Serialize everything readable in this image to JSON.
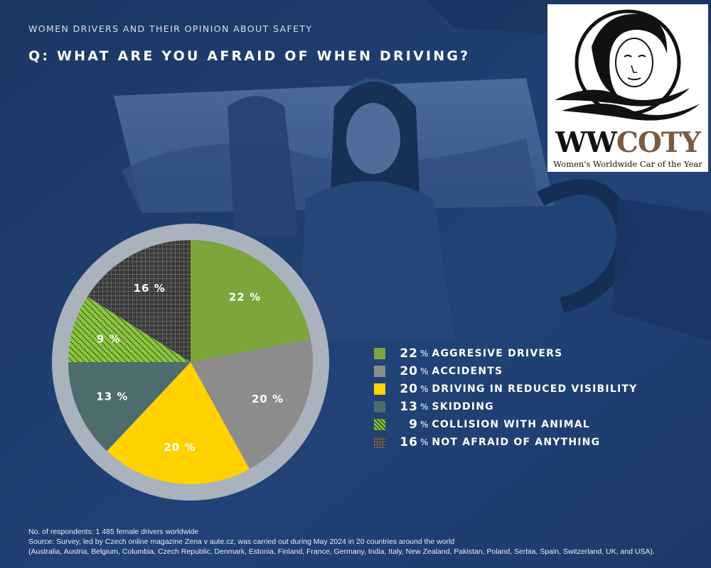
{
  "header": {
    "subtitle": "WOMEN DRIVERS AND THEIR OPINION ABOUT SAFETY",
    "question": "Q:  WHAT ARE YOU AFRAID OF WHEN DRIVING?"
  },
  "logo": {
    "word_part1": "WW",
    "word_part2": "COTY",
    "tagline": "Women's Worldwide Car of the Year"
  },
  "chart_data": {
    "type": "pie",
    "unit": "%",
    "slices": [
      {
        "label": "AGGRESIVE DRIVERS",
        "value": 22,
        "color": "#7da53a",
        "pattern": "solid"
      },
      {
        "label": "ACCIDENTS",
        "value": 20,
        "color": "#8c8c8c",
        "pattern": "solid"
      },
      {
        "label": "DRIVING IN REDUCED VISIBILITY",
        "value": 20,
        "color": "#ffd200",
        "pattern": "solid"
      },
      {
        "label": "SKIDDING",
        "value": 13,
        "color": "#4e6b6e",
        "pattern": "solid"
      },
      {
        "label": "COLLISION WITH ANIMAL",
        "value": 9,
        "color": "#8cc63f",
        "pattern": "diagonal-dots"
      },
      {
        "label": "NOT AFRAID OF ANYTHING",
        "value": 16,
        "color": "#3a3a3a",
        "pattern": "grid"
      }
    ],
    "ring_color": "#a9b2bd",
    "start_angle_deg": 0,
    "direction": "clockwise",
    "legend_position": "right"
  },
  "footer": {
    "line1": "No. of respondents: 1 485 female drivers worldwide",
    "line2": "Source: Survey, led by Czech online magazine Zena v aute.cz, was carried out during May 2024 in 20 countries around the world",
    "line3": "(Australia, Austria, Belgium, Columbia, Czech Republic, Denmark, Estonia, Finland, France, Germany, India, Italy, New Zealand, Pakistan, Poland, Serbia, Spain, Switzerland, UK, and USA)."
  }
}
